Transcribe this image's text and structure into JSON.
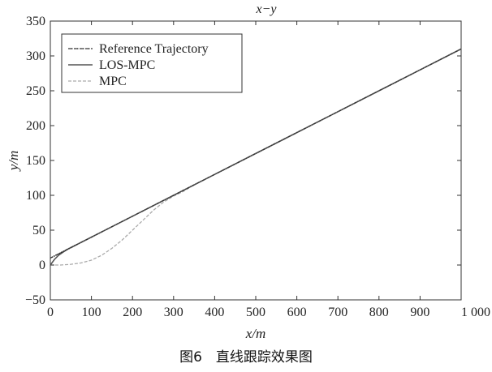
{
  "chart_data": {
    "type": "line",
    "title": "x−y",
    "xlabel": "x/m",
    "ylabel": "y/m",
    "xlim": [
      0,
      1000
    ],
    "ylim": [
      -50,
      350
    ],
    "xticks": [
      0,
      100,
      200,
      300,
      400,
      500,
      600,
      700,
      800,
      900,
      1000
    ],
    "xtick_labels": [
      "0",
      "100",
      "200",
      "300",
      "400",
      "500",
      "600",
      "700",
      "800",
      "900",
      "1 000"
    ],
    "yticks": [
      -50,
      0,
      50,
      100,
      150,
      200,
      250,
      300,
      350
    ],
    "ytick_labels": [
      "−50",
      "0",
      "50",
      "100",
      "150",
      "200",
      "250",
      "300",
      "350"
    ],
    "grid": false,
    "legend_position": "top-left",
    "series": [
      {
        "name": "Reference Trajectory",
        "color": "#333333",
        "style": "dash-dot-marker",
        "x": [
          0,
          50,
          100,
          200,
          300,
          400,
          500,
          600,
          700,
          800,
          900,
          1000
        ],
        "y": [
          10,
          25,
          40,
          70,
          100,
          130,
          160,
          190,
          220,
          250,
          280,
          310
        ]
      },
      {
        "name": "LOS-MPC",
        "color": "#555555",
        "style": "solid",
        "x": [
          0,
          10,
          20,
          30,
          40,
          60,
          80,
          100,
          200,
          300,
          400,
          500,
          600,
          700,
          800,
          900,
          1000
        ],
        "y": [
          0,
          8,
          14,
          18,
          22,
          28,
          34,
          40,
          70,
          100,
          130,
          160,
          190,
          220,
          250,
          280,
          310
        ]
      },
      {
        "name": "MPC",
        "color": "#aaaaaa",
        "style": "dashed",
        "x": [
          0,
          25,
          50,
          75,
          100,
          125,
          150,
          175,
          200,
          225,
          250,
          275,
          300,
          325,
          350,
          400,
          500,
          600,
          700,
          800,
          900,
          1000
        ],
        "y": [
          0,
          0,
          1,
          3,
          7,
          14,
          24,
          36,
          50,
          64,
          78,
          90,
          99,
          106,
          115,
          130,
          160,
          190,
          220,
          250,
          280,
          310
        ]
      }
    ]
  },
  "caption": "图6　直线跟踪效果图"
}
